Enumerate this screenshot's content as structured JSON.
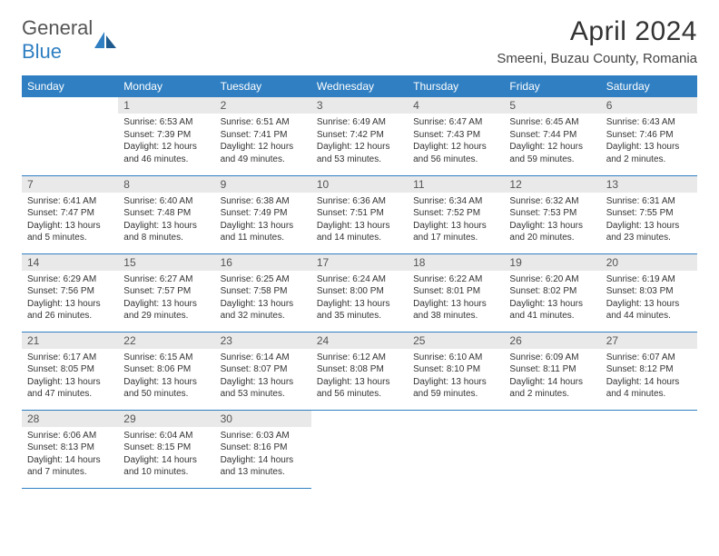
{
  "logo": {
    "text1": "General",
    "text2": "Blue"
  },
  "title": "April 2024",
  "location": "Smeeni, Buzau County, Romania",
  "colors": {
    "accent": "#2f7fc2",
    "dayHeaderBg": "#e9e9e9",
    "text": "#333333"
  },
  "dayNames": [
    "Sunday",
    "Monday",
    "Tuesday",
    "Wednesday",
    "Thursday",
    "Friday",
    "Saturday"
  ],
  "calendar": {
    "type": "table",
    "startDayIndex": 1,
    "daysInMonth": 30,
    "days": [
      {
        "n": 1,
        "sunrise": "6:53 AM",
        "sunset": "7:39 PM",
        "daylight": "12 hours and 46 minutes."
      },
      {
        "n": 2,
        "sunrise": "6:51 AM",
        "sunset": "7:41 PM",
        "daylight": "12 hours and 49 minutes."
      },
      {
        "n": 3,
        "sunrise": "6:49 AM",
        "sunset": "7:42 PM",
        "daylight": "12 hours and 53 minutes."
      },
      {
        "n": 4,
        "sunrise": "6:47 AM",
        "sunset": "7:43 PM",
        "daylight": "12 hours and 56 minutes."
      },
      {
        "n": 5,
        "sunrise": "6:45 AM",
        "sunset": "7:44 PM",
        "daylight": "12 hours and 59 minutes."
      },
      {
        "n": 6,
        "sunrise": "6:43 AM",
        "sunset": "7:46 PM",
        "daylight": "13 hours and 2 minutes."
      },
      {
        "n": 7,
        "sunrise": "6:41 AM",
        "sunset": "7:47 PM",
        "daylight": "13 hours and 5 minutes."
      },
      {
        "n": 8,
        "sunrise": "6:40 AM",
        "sunset": "7:48 PM",
        "daylight": "13 hours and 8 minutes."
      },
      {
        "n": 9,
        "sunrise": "6:38 AM",
        "sunset": "7:49 PM",
        "daylight": "13 hours and 11 minutes."
      },
      {
        "n": 10,
        "sunrise": "6:36 AM",
        "sunset": "7:51 PM",
        "daylight": "13 hours and 14 minutes."
      },
      {
        "n": 11,
        "sunrise": "6:34 AM",
        "sunset": "7:52 PM",
        "daylight": "13 hours and 17 minutes."
      },
      {
        "n": 12,
        "sunrise": "6:32 AM",
        "sunset": "7:53 PM",
        "daylight": "13 hours and 20 minutes."
      },
      {
        "n": 13,
        "sunrise": "6:31 AM",
        "sunset": "7:55 PM",
        "daylight": "13 hours and 23 minutes."
      },
      {
        "n": 14,
        "sunrise": "6:29 AM",
        "sunset": "7:56 PM",
        "daylight": "13 hours and 26 minutes."
      },
      {
        "n": 15,
        "sunrise": "6:27 AM",
        "sunset": "7:57 PM",
        "daylight": "13 hours and 29 minutes."
      },
      {
        "n": 16,
        "sunrise": "6:25 AM",
        "sunset": "7:58 PM",
        "daylight": "13 hours and 32 minutes."
      },
      {
        "n": 17,
        "sunrise": "6:24 AM",
        "sunset": "8:00 PM",
        "daylight": "13 hours and 35 minutes."
      },
      {
        "n": 18,
        "sunrise": "6:22 AM",
        "sunset": "8:01 PM",
        "daylight": "13 hours and 38 minutes."
      },
      {
        "n": 19,
        "sunrise": "6:20 AM",
        "sunset": "8:02 PM",
        "daylight": "13 hours and 41 minutes."
      },
      {
        "n": 20,
        "sunrise": "6:19 AM",
        "sunset": "8:03 PM",
        "daylight": "13 hours and 44 minutes."
      },
      {
        "n": 21,
        "sunrise": "6:17 AM",
        "sunset": "8:05 PM",
        "daylight": "13 hours and 47 minutes."
      },
      {
        "n": 22,
        "sunrise": "6:15 AM",
        "sunset": "8:06 PM",
        "daylight": "13 hours and 50 minutes."
      },
      {
        "n": 23,
        "sunrise": "6:14 AM",
        "sunset": "8:07 PM",
        "daylight": "13 hours and 53 minutes."
      },
      {
        "n": 24,
        "sunrise": "6:12 AM",
        "sunset": "8:08 PM",
        "daylight": "13 hours and 56 minutes."
      },
      {
        "n": 25,
        "sunrise": "6:10 AM",
        "sunset": "8:10 PM",
        "daylight": "13 hours and 59 minutes."
      },
      {
        "n": 26,
        "sunrise": "6:09 AM",
        "sunset": "8:11 PM",
        "daylight": "14 hours and 2 minutes."
      },
      {
        "n": 27,
        "sunrise": "6:07 AM",
        "sunset": "8:12 PM",
        "daylight": "14 hours and 4 minutes."
      },
      {
        "n": 28,
        "sunrise": "6:06 AM",
        "sunset": "8:13 PM",
        "daylight": "14 hours and 7 minutes."
      },
      {
        "n": 29,
        "sunrise": "6:04 AM",
        "sunset": "8:15 PM",
        "daylight": "14 hours and 10 minutes."
      },
      {
        "n": 30,
        "sunrise": "6:03 AM",
        "sunset": "8:16 PM",
        "daylight": "14 hours and 13 minutes."
      }
    ]
  },
  "labels": {
    "sunrise": "Sunrise:",
    "sunset": "Sunset:",
    "daylight": "Daylight:"
  }
}
